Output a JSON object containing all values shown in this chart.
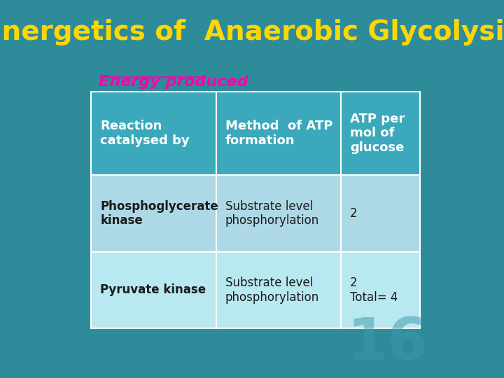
{
  "title": "Energetics of  Anaerobic Glycolysis",
  "title_color": "#FFD700",
  "title_fontsize": 28,
  "background_color": "#2E8B9A",
  "subtitle": "Energy produced",
  "subtitle_color": "#FF00AA",
  "subtitle_fontsize": 16,
  "table_header_bg": "#3BA8BB",
  "table_row1_bg": "#ADD8E6",
  "table_row2_bg": "#B8E8F0",
  "table_border_color": "#FFFFFF",
  "col1_header": "Reaction\ncatalysed by",
  "col2_header": "Method  of ATP\nformation",
  "col3_header": "ATP per\nmol of\nglucose",
  "rows": [
    [
      "Phosphoglycerate\nkinase",
      "Substrate level\nphosphorylation",
      "2"
    ],
    [
      "Pyruvate kinase",
      "Substrate level\nphosphorylation",
      "2\nTotal= 4"
    ]
  ],
  "header_text_color": "#FFFFFF",
  "row_text_color": "#1A1A1A",
  "watermark": "16",
  "watermark_color": "#3A9AAA",
  "watermark_fontsize": 60
}
